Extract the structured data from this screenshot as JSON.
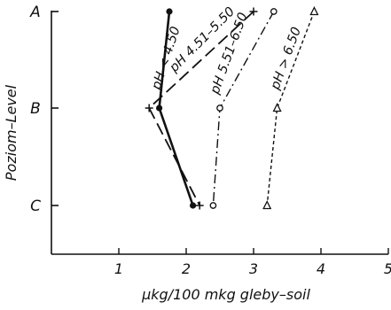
{
  "chart_data": {
    "type": "line",
    "xlabel": "µkg/100 mkg gleby–soil",
    "ylabel": "Poziom–Level",
    "xlim": [
      0,
      5
    ],
    "x_ticks": [
      "1",
      "2",
      "3",
      "4",
      "5"
    ],
    "y_categories": [
      "A",
      "B",
      "C"
    ],
    "grid": false,
    "series": [
      {
        "name": "pH < 4.50",
        "marker": "filled-circle",
        "line": "solid",
        "points": [
          {
            "level": "A",
            "x": 1.75
          },
          {
            "level": "B",
            "x": 1.6
          },
          {
            "level": "C",
            "x": 2.1
          }
        ]
      },
      {
        "name": "pH 4.51–5.50",
        "marker": "plus",
        "line": "dashed",
        "points": [
          {
            "level": "A",
            "x": 3.0
          },
          {
            "level": "B",
            "x": 1.45
          },
          {
            "level": "C",
            "x": 2.2
          }
        ]
      },
      {
        "name": "pH 5.51–6.50",
        "marker": "open-circle",
        "line": "dash-dot",
        "points": [
          {
            "level": "A",
            "x": 3.3
          },
          {
            "level": "B",
            "x": 2.5
          },
          {
            "level": "C",
            "x": 2.4
          }
        ]
      },
      {
        "name": "pH > 6.50",
        "marker": "open-triangle",
        "line": "dotted",
        "points": [
          {
            "level": "A",
            "x": 3.9
          },
          {
            "level": "B",
            "x": 3.35
          },
          {
            "level": "C",
            "x": 3.2
          }
        ]
      }
    ]
  }
}
